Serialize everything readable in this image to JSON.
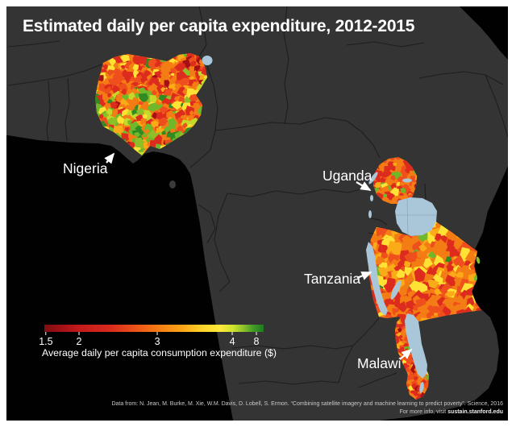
{
  "title": "Estimated daily per capita expenditure, 2012-2015",
  "countries": [
    {
      "name": "Nigeria"
    },
    {
      "name": "Uganda"
    },
    {
      "name": "Tanzania"
    },
    {
      "name": "Malawi"
    }
  ],
  "legend": {
    "caption": "Average daily per capita consumption expenditure ($)",
    "ticks": [
      "1.5",
      "2",
      "3",
      "4",
      "8"
    ]
  },
  "attribution": {
    "line1": "Data from: N. Jean, M. Burke, M. Xie, W.M. Davis, D. Lobell, S. Ermon. “Combining satellite imagery and machine learning to predict poverty”. Science, 2016",
    "line2_prefix": "For more info, visit ",
    "line2_link": "sustain.stanford.edu"
  },
  "colors": {
    "ocean": "#010101",
    "land": "#343434",
    "country_border": "#1e1e1e",
    "lake": "#a9c7d9",
    "text": "#ffffff",
    "scale": [
      "#7f0d11",
      "#c41a1b",
      "#ee5418",
      "#f47c14",
      "#fba617",
      "#ffe93c",
      "#cfe32e",
      "#8bc02a",
      "#1d7a1f"
    ],
    "mosaic": {
      "darkred": "#a50f15",
      "red": "#dd2c1e",
      "redorange": "#ee4f1c",
      "orange": "#f47c14",
      "amber": "#fbab17",
      "yellow": "#ffe234",
      "yellowgreen": "#c3da2b",
      "olive": "#8fbf28",
      "green": "#6fb82a",
      "darkgreen": "#2f8b22"
    }
  }
}
